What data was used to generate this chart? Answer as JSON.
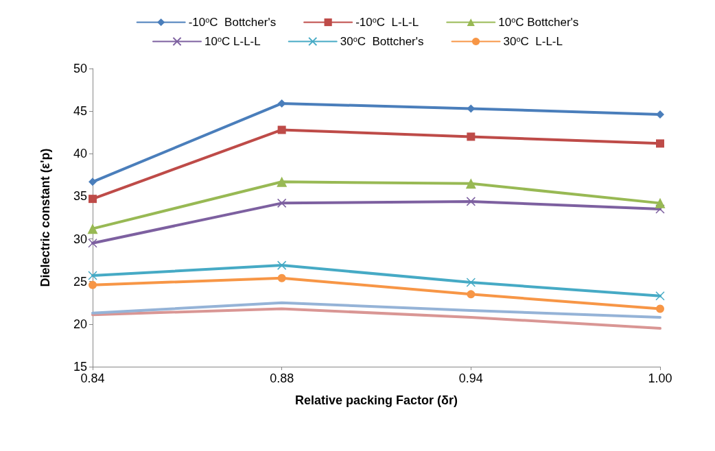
{
  "chart_data": {
    "type": "line",
    "xlabel": "Relative packing Factor (δr)",
    "ylabel": "Dielectric constant (ε'p)",
    "categories": [
      "0.84",
      "0.88",
      "0.94",
      "1.00"
    ],
    "ylim": [
      15,
      50
    ],
    "yticks": [
      15,
      20,
      25,
      30,
      35,
      40,
      45,
      50
    ],
    "grid": false,
    "legend": "top",
    "line_style": "solid",
    "series": [
      {
        "name": "-10$^{o}$C  Bottcher's",
        "color": "#4a7ebb",
        "marker": "diamond",
        "values": [
          36.7,
          45.9,
          45.3,
          44.6
        ]
      },
      {
        "name": "-10$^{o}$C  L-L-L",
        "color": "#be4b48",
        "marker": "square",
        "values": [
          34.7,
          42.8,
          42.0,
          41.2
        ]
      },
      {
        "name": "10$^{o}$C Bottcher's",
        "color": "#98b954",
        "marker": "triangle",
        "values": [
          31.2,
          36.7,
          36.5,
          34.2
        ]
      },
      {
        "name": "10$^{o}$C L-L-L",
        "color": "#7d60a0",
        "marker": "cross",
        "values": [
          29.5,
          34.2,
          34.4,
          33.5
        ]
      },
      {
        "name": "30$^{o}$C  Bottcher's",
        "color": "#46aac5",
        "marker": "cross",
        "values": [
          25.7,
          26.9,
          24.9,
          23.3
        ]
      },
      {
        "name": "30$^{o}$C  L-L-L",
        "color": "#f79646",
        "marker": "circle",
        "values": [
          24.6,
          25.4,
          23.5,
          21.8
        ]
      },
      {
        "color": "#95b3d7",
        "marker": "none",
        "values": [
          21.3,
          22.5,
          21.6,
          20.8
        ]
      },
      {
        "color": "#d99694",
        "marker": "none",
        "values": [
          21.1,
          21.8,
          20.8,
          19.5
        ]
      }
    ]
  }
}
